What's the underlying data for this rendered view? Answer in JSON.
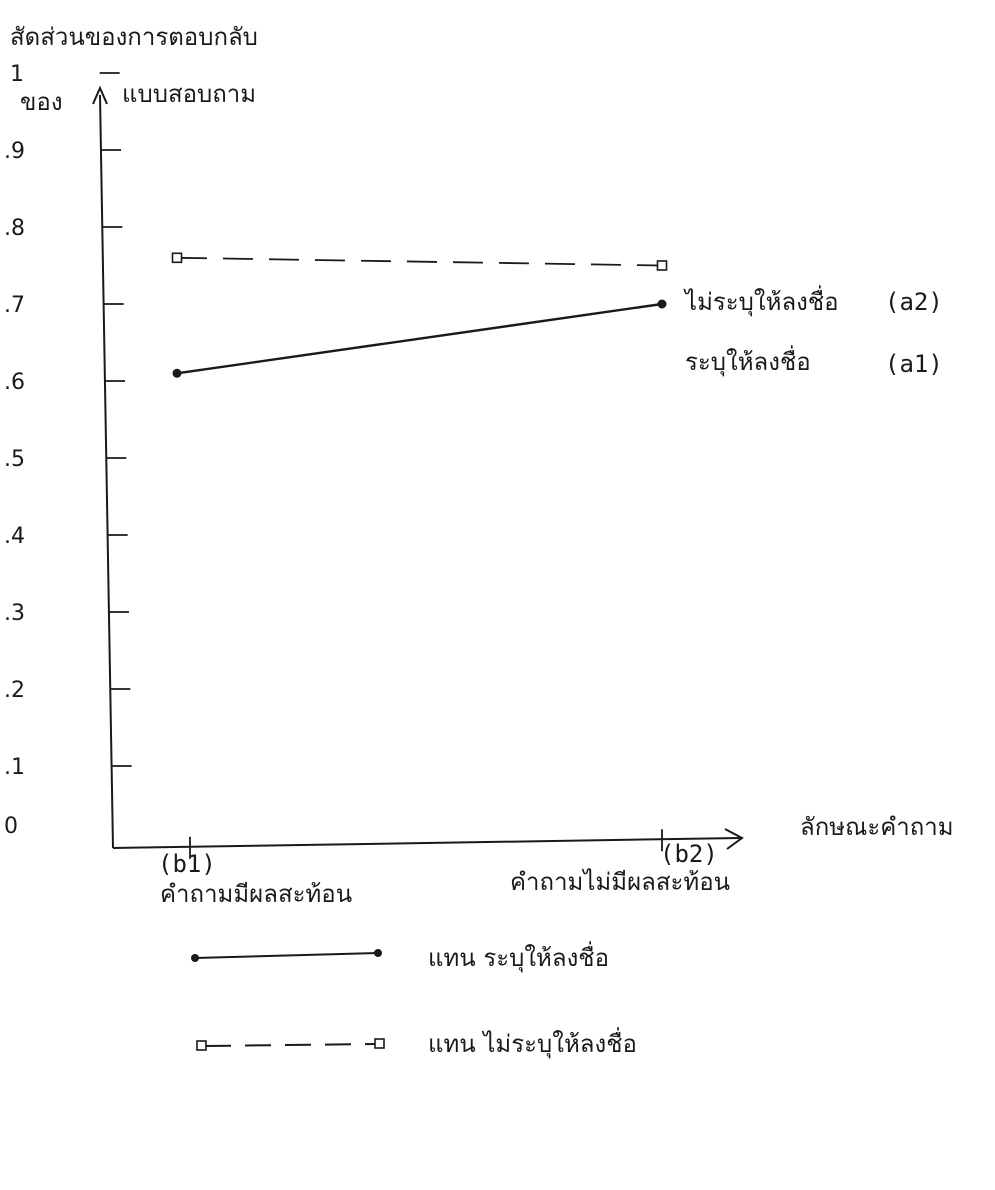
{
  "chart_data": {
    "type": "line",
    "title": "",
    "ylabel_line1": "สัดส่วนของการตอบกลับ",
    "ylabel_line2_left": "ของ",
    "ylabel_line2_right": "แบบสอบถาม",
    "xlabel": "ลักษณะคำถาม",
    "ylim": [
      0,
      1.0
    ],
    "yticks": [
      {
        "value": 0,
        "label": "0"
      },
      {
        "value": 0.1,
        "label": ".1"
      },
      {
        "value": 0.2,
        "label": ".2"
      },
      {
        "value": 0.3,
        "label": ".3"
      },
      {
        "value": 0.4,
        "label": ".4"
      },
      {
        "value": 0.5,
        "label": ".5"
      },
      {
        "value": 0.6,
        "label": ".6"
      },
      {
        "value": 0.7,
        "label": ".7"
      },
      {
        "value": 0.8,
        "label": ".8"
      },
      {
        "value": 0.9,
        "label": ".9"
      },
      {
        "value": 1.0,
        "label": "1"
      }
    ],
    "categories": [
      {
        "code": "(b1)",
        "label": "คำถามมีผลสะท้อน"
      },
      {
        "code": "(b2)",
        "label": "คำถามไม่มีผลสะท้อน"
      }
    ],
    "series": [
      {
        "name": "ไม่ระบุให้ลงชื่อ",
        "code": "(a2)",
        "style": "dashed",
        "marker": "square",
        "values": [
          0.76,
          0.75
        ]
      },
      {
        "name": "ระบุให้ลงชื่อ",
        "code": "(a1)",
        "style": "solid",
        "marker": "dot",
        "values": [
          0.61,
          0.7
        ]
      }
    ],
    "legend": [
      {
        "text": "แทน ระบุให้ลงชื่อ",
        "style": "solid",
        "marker": "dot"
      },
      {
        "text": "แทน ไม่ระบุให้ลงชื่อ",
        "style": "dashed",
        "marker": "square"
      }
    ],
    "grid": false,
    "colors": {
      "ink": "#1a1a1a",
      "background": "#ffffff"
    }
  }
}
